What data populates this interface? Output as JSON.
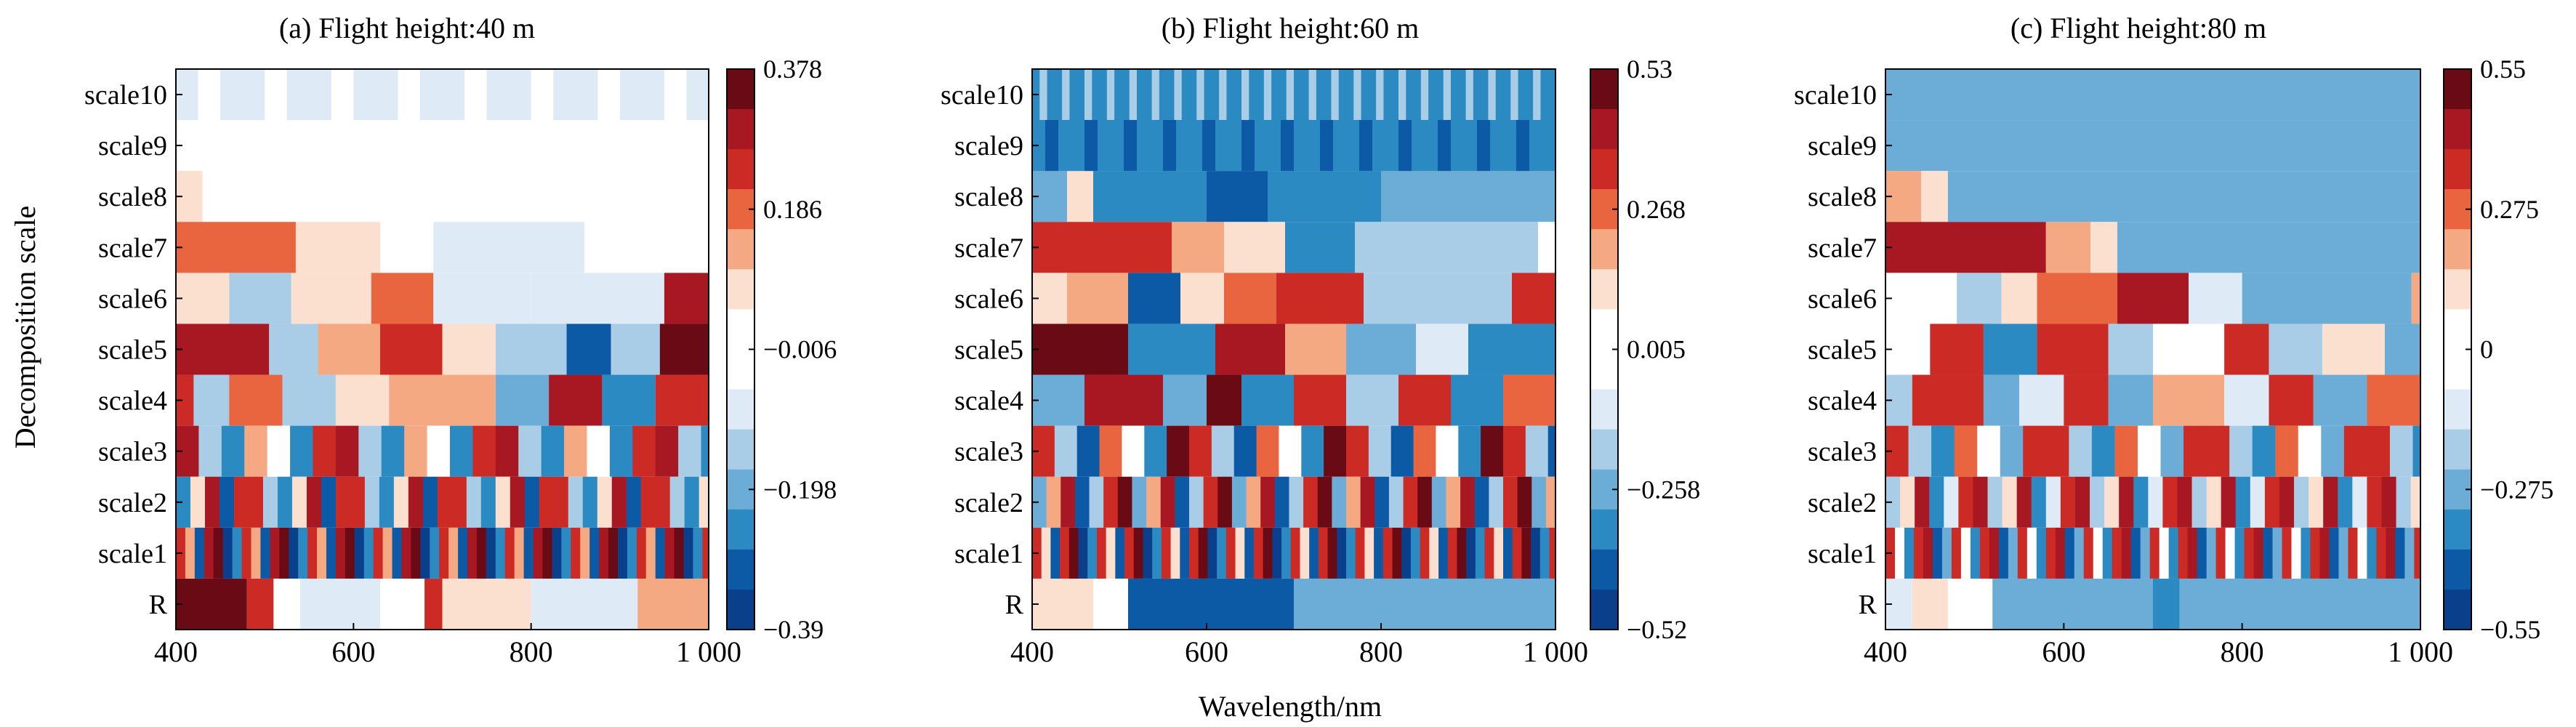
{
  "shared": {
    "ylabel": "Decomposition scale",
    "xlabel": "Wavelength/nm",
    "row_labels": [
      "scale10",
      "scale9",
      "scale8",
      "scale7",
      "scale6",
      "scale5",
      "scale4",
      "scale3",
      "scale2",
      "scale1",
      "R"
    ],
    "x_ticks": [
      "400",
      "600",
      "800",
      "1 000"
    ],
    "colors": {
      "pos": [
        "#fbe0d0",
        "#f4a982",
        "#e9653f",
        "#cc2a24",
        "#a81822",
        "#6a0a14"
      ],
      "neu": "#ffffff",
      "neg": [
        "#deebf7",
        "#a9cde6",
        "#6badd6",
        "#2c8ac2",
        "#0c5aa5",
        "#0a3f8c"
      ]
    }
  },
  "chart_data": [
    {
      "type": "heatmap",
      "title": "(a) Flight height:40 m",
      "x_range": [
        400,
        1000
      ],
      "rows": [
        "scale10",
        "scale9",
        "scale8",
        "scale7",
        "scale6",
        "scale5",
        "scale4",
        "scale3",
        "scale2",
        "scale1",
        "R"
      ],
      "colorbar": {
        "ticks": [
          "0.378",
          "0.186",
          "−0.006",
          "−0.198",
          "−0.39"
        ],
        "max": 0.378,
        "min": -0.39
      },
      "row_segments": [
        [
          [
            400,
            1000,
            -0.05
          ]
        ],
        [
          [
            400,
            1000,
            0.0
          ]
        ],
        [
          [
            400,
            430,
            0.03
          ],
          [
            430,
            1000,
            0.0
          ]
        ],
        [
          [
            400,
            535,
            0.15
          ],
          [
            535,
            630,
            0.05
          ],
          [
            630,
            690,
            0.0
          ],
          [
            690,
            860,
            -0.04
          ],
          [
            860,
            1000,
            0.0
          ]
        ],
        [
          [
            400,
            460,
            0.05
          ],
          [
            460,
            530,
            -0.08
          ],
          [
            530,
            620,
            0.05
          ],
          [
            620,
            690,
            0.15
          ],
          [
            690,
            800,
            -0.05
          ],
          [
            800,
            950,
            -0.03
          ],
          [
            950,
            1000,
            0.28
          ]
        ],
        [
          [
            400,
            505,
            0.28
          ],
          [
            505,
            560,
            -0.12
          ],
          [
            560,
            630,
            0.12
          ],
          [
            630,
            700,
            0.25
          ],
          [
            700,
            760,
            0.05
          ],
          [
            760,
            840,
            -0.12
          ],
          [
            840,
            890,
            -0.32
          ],
          [
            890,
            945,
            -0.08
          ],
          [
            945,
            1000,
            0.37
          ]
        ],
        [
          [
            400,
            420,
            0.2
          ],
          [
            420,
            460,
            -0.1
          ],
          [
            460,
            520,
            0.15
          ],
          [
            520,
            580,
            -0.1
          ],
          [
            580,
            640,
            0.05
          ],
          [
            640,
            760,
            0.08
          ],
          [
            760,
            820,
            -0.15
          ],
          [
            820,
            880,
            0.28
          ],
          [
            880,
            940,
            -0.2
          ],
          [
            940,
            1000,
            0.22
          ]
        ],
        [
          [
            400,
            1000,
            0.0
          ]
        ],
        [
          [
            400,
            1000,
            0.0
          ]
        ],
        [
          [
            400,
            1000,
            0.0
          ]
        ],
        [
          [
            400,
            480,
            0.32
          ],
          [
            480,
            510,
            0.2
          ],
          [
            510,
            540,
            0.0
          ],
          [
            540,
            630,
            -0.05
          ],
          [
            630,
            680,
            0.0
          ],
          [
            680,
            700,
            0.25
          ],
          [
            700,
            800,
            0.03
          ],
          [
            800,
            920,
            -0.04
          ],
          [
            920,
            1000,
            0.1
          ]
        ]
      ],
      "row_stripes": [
        {
          "row": 0,
          "count": 24,
          "values": [
            -0.06,
            0.0
          ]
        },
        {
          "row": 7,
          "count": 70,
          "values": [
            0.3,
            -0.2,
            0.1,
            -0.1,
            0.25,
            0.0,
            -0.25
          ]
        },
        {
          "row": 8,
          "count": 110,
          "values": [
            0.3,
            -0.2,
            0.2,
            -0.3,
            0.05,
            -0.1,
            0.25
          ]
        },
        {
          "row": 9,
          "count": 170,
          "values": [
            0.35,
            -0.3,
            0.25,
            -0.35,
            0.3,
            0.1,
            -0.2
          ]
        }
      ]
    },
    {
      "type": "heatmap",
      "title": "(b)  Flight height:60 m",
      "x_range": [
        400,
        1000
      ],
      "rows": [
        "scale10",
        "scale9",
        "scale8",
        "scale7",
        "scale6",
        "scale5",
        "scale4",
        "scale3",
        "scale2",
        "scale1",
        "R"
      ],
      "colorbar": {
        "ticks": [
          "0.53",
          "0.268",
          "0.005",
          "−0.258",
          "−0.52"
        ],
        "max": 0.53,
        "min": -0.52
      },
      "row_segments": [
        [
          [
            400,
            1000,
            -0.35
          ]
        ],
        [
          [
            400,
            1000,
            -0.38
          ]
        ],
        [
          [
            400,
            440,
            -0.2
          ],
          [
            440,
            470,
            0.05
          ],
          [
            470,
            600,
            -0.3
          ],
          [
            600,
            670,
            -0.38
          ],
          [
            670,
            800,
            -0.3
          ],
          [
            800,
            1000,
            -0.18
          ]
        ],
        [
          [
            400,
            560,
            0.35
          ],
          [
            560,
            620,
            0.15
          ],
          [
            620,
            690,
            0.02
          ],
          [
            690,
            770,
            -0.3
          ],
          [
            770,
            980,
            -0.15
          ],
          [
            980,
            1000,
            0.0
          ]
        ],
        [
          [
            400,
            440,
            0.05
          ],
          [
            440,
            510,
            0.15
          ],
          [
            510,
            570,
            -0.4
          ],
          [
            570,
            620,
            0.05
          ],
          [
            620,
            680,
            0.2
          ],
          [
            680,
            780,
            0.35
          ],
          [
            780,
            950,
            -0.15
          ],
          [
            950,
            1000,
            0.35
          ]
        ],
        [
          [
            400,
            510,
            0.45
          ],
          [
            510,
            610,
            -0.3
          ],
          [
            610,
            690,
            0.4
          ],
          [
            690,
            760,
            0.1
          ],
          [
            760,
            840,
            -0.2
          ],
          [
            840,
            900,
            -0.05
          ],
          [
            900,
            1000,
            -0.3
          ]
        ],
        [
          [
            400,
            460,
            -0.2
          ],
          [
            460,
            550,
            0.4
          ],
          [
            550,
            600,
            -0.2
          ],
          [
            600,
            640,
            0.5
          ],
          [
            640,
            700,
            -0.3
          ],
          [
            700,
            760,
            0.35
          ],
          [
            760,
            820,
            -0.1
          ],
          [
            820,
            880,
            0.3
          ],
          [
            880,
            940,
            -0.3
          ],
          [
            940,
            1000,
            0.2
          ]
        ],
        [
          [
            400,
            1000,
            0.0
          ]
        ],
        [
          [
            400,
            1000,
            0.0
          ]
        ],
        [
          [
            400,
            1000,
            0.0
          ]
        ],
        [
          [
            400,
            470,
            0.05
          ],
          [
            470,
            510,
            0.0
          ],
          [
            510,
            700,
            -0.35
          ],
          [
            700,
            760,
            -0.2
          ],
          [
            760,
            1000,
            -0.18
          ]
        ]
      ],
      "row_stripes": [
        {
          "row": 0,
          "count": 70,
          "values": [
            -0.32,
            -0.15
          ]
        },
        {
          "row": 1,
          "count": 40,
          "values": [
            -0.38,
            -0.3
          ]
        },
        {
          "row": 7,
          "count": 70,
          "values": [
            0.35,
            -0.3,
            0.25,
            -0.15,
            0.45,
            0.0,
            -0.35
          ]
        },
        {
          "row": 8,
          "count": 110,
          "values": [
            0.4,
            -0.2,
            0.3,
            -0.35,
            0.1,
            0.45,
            -0.1
          ]
        },
        {
          "row": 9,
          "count": 170,
          "values": [
            0.45,
            -0.4,
            0.3,
            -0.45,
            0.35,
            0.05,
            -0.3
          ]
        }
      ]
    },
    {
      "type": "heatmap",
      "title": "(c)  Flight height:80 m",
      "x_range": [
        400,
        1000
      ],
      "rows": [
        "scale10",
        "scale9",
        "scale8",
        "scale7",
        "scale6",
        "scale5",
        "scale4",
        "scale3",
        "scale2",
        "scale1",
        "R"
      ],
      "colorbar": {
        "ticks": [
          "0.55",
          "0.275",
          "0",
          "−0.275",
          "−0.55"
        ],
        "max": 0.55,
        "min": -0.55
      },
      "row_segments": [
        [
          [
            400,
            1000,
            -0.2
          ]
        ],
        [
          [
            400,
            1000,
            -0.2
          ]
        ],
        [
          [
            400,
            440,
            0.15
          ],
          [
            440,
            470,
            0.05
          ],
          [
            470,
            1000,
            -0.2
          ]
        ],
        [
          [
            400,
            580,
            0.38
          ],
          [
            580,
            630,
            0.15
          ],
          [
            630,
            660,
            0.05
          ],
          [
            660,
            1000,
            -0.2
          ]
        ],
        [
          [
            400,
            480,
            0.0
          ],
          [
            480,
            530,
            -0.1
          ],
          [
            530,
            570,
            0.05
          ],
          [
            570,
            660,
            0.2
          ],
          [
            660,
            740,
            0.38
          ],
          [
            740,
            800,
            -0.05
          ],
          [
            800,
            990,
            -0.2
          ],
          [
            990,
            1000,
            0.15
          ]
        ],
        [
          [
            400,
            450,
            0.0
          ],
          [
            450,
            510,
            0.35
          ],
          [
            510,
            570,
            -0.3
          ],
          [
            570,
            650,
            0.35
          ],
          [
            650,
            700,
            -0.1
          ],
          [
            700,
            780,
            0.0
          ],
          [
            780,
            830,
            0.35
          ],
          [
            830,
            890,
            -0.1
          ],
          [
            890,
            960,
            0.05
          ],
          [
            960,
            1000,
            -0.2
          ]
        ],
        [
          [
            400,
            430,
            -0.15
          ],
          [
            430,
            510,
            0.35
          ],
          [
            510,
            550,
            -0.2
          ],
          [
            550,
            600,
            -0.05
          ],
          [
            600,
            650,
            0.35
          ],
          [
            650,
            700,
            -0.2
          ],
          [
            700,
            780,
            0.15
          ],
          [
            780,
            830,
            -0.05
          ],
          [
            830,
            880,
            0.3
          ],
          [
            880,
            940,
            -0.2
          ],
          [
            940,
            1000,
            0.25
          ]
        ],
        [
          [
            400,
            1000,
            0.0
          ]
        ],
        [
          [
            400,
            1000,
            0.0
          ]
        ],
        [
          [
            400,
            1000,
            0.0
          ]
        ],
        [
          [
            400,
            430,
            -0.08
          ],
          [
            430,
            470,
            0.05
          ],
          [
            470,
            520,
            0.0
          ],
          [
            520,
            700,
            -0.2
          ],
          [
            700,
            730,
            -0.35
          ],
          [
            730,
            1000,
            -0.2
          ]
        ]
      ],
      "row_stripes": [
        {
          "row": 7,
          "count": 70,
          "values": [
            0.35,
            -0.25,
            0.2,
            -0.1,
            0.3,
            0.0,
            -0.3
          ]
        },
        {
          "row": 8,
          "count": 110,
          "values": [
            0.4,
            -0.15,
            0.3,
            -0.3,
            0.05,
            0.45,
            -0.05
          ]
        },
        {
          "row": 9,
          "count": 170,
          "values": [
            0.45,
            -0.35,
            0.3,
            -0.45,
            0.35,
            0.0,
            -0.25
          ]
        }
      ]
    }
  ]
}
